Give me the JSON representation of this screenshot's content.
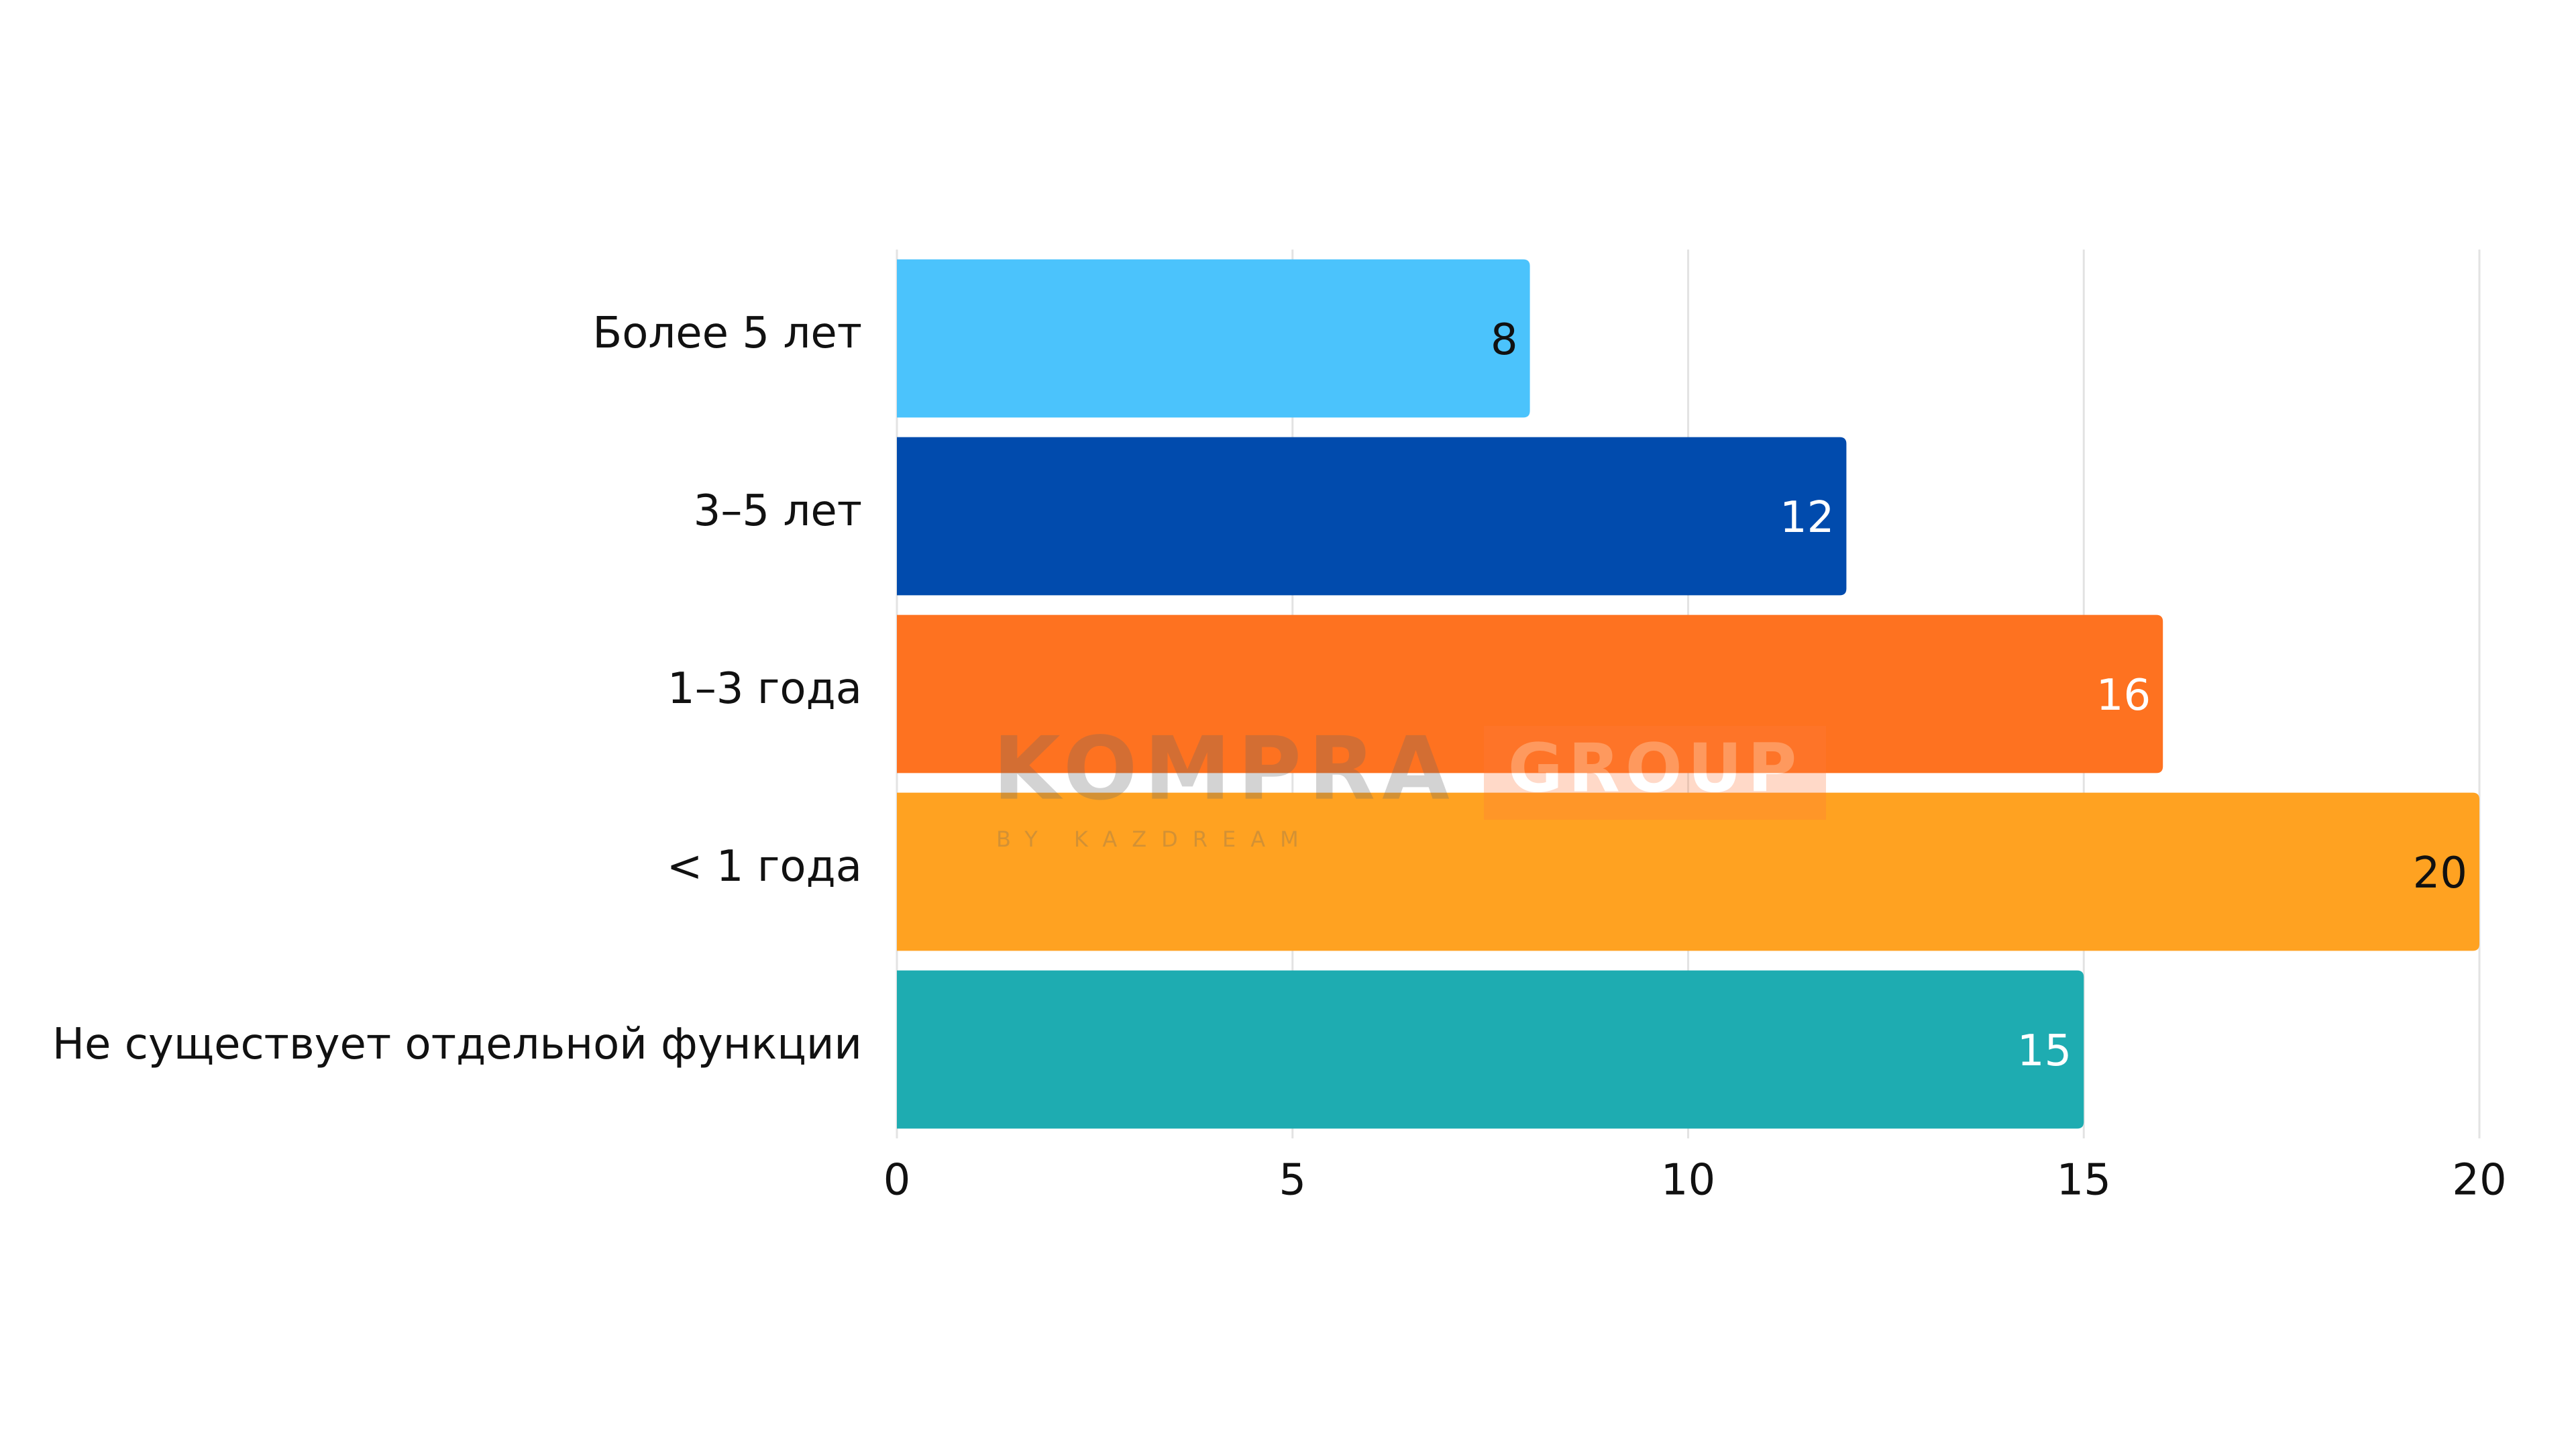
{
  "chart_data": {
    "type": "bar",
    "orientation": "horizontal",
    "categories": [
      "Более 5 лет",
      "3–5 лет",
      "1–3 года",
      "< 1 года",
      "Не существует отдельной функции"
    ],
    "values": [
      8,
      12,
      16,
      20,
      15
    ],
    "colors": [
      "#4bc3fc",
      "#014bad",
      "#fe7220",
      "#ffa221",
      "#1eacb1"
    ],
    "xlim": [
      0,
      20
    ],
    "xticks": [
      0,
      5,
      10,
      15,
      20
    ],
    "grid": true,
    "watermark": {
      "brand": "KOMPRA",
      "sub": "GROUP",
      "tagline": "BY KAZDREAM"
    }
  }
}
